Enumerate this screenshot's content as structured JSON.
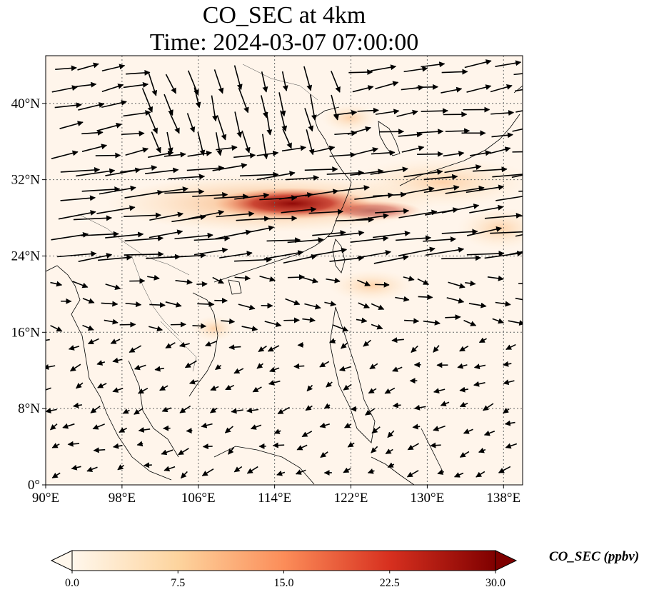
{
  "title_line1": "CO_SEC at 4km",
  "title_line2": "Time: 2024-03-07 07:00:00",
  "map": {
    "lon_range": [
      90,
      140
    ],
    "lat_range": [
      0,
      45
    ],
    "lon_ticks": [
      90,
      98,
      106,
      114,
      122,
      130,
      138
    ],
    "lon_tick_labels": [
      "90°E",
      "98°E",
      "106°E",
      "114°E",
      "122°E",
      "130°E",
      "138°E"
    ],
    "lat_ticks": [
      0,
      8,
      16,
      24,
      32,
      40
    ],
    "lat_tick_labels": [
      "0°",
      "8°N",
      "16°N",
      "24°N",
      "32°N",
      "40°N"
    ],
    "gridlines": true,
    "background_color": "#fff5eb",
    "plume_color": "#8b0000",
    "wind_vectors": "black arrows"
  },
  "colorbar": {
    "label": "CO_SEC (ppbv)",
    "min": 0.0,
    "max": 30.0,
    "ticks": [
      0.0,
      7.5,
      15.0,
      22.5,
      30.0
    ],
    "tick_labels": [
      "0.0",
      "7.5",
      "15.0",
      "22.5",
      "30.0"
    ],
    "colormap": "OrRd",
    "extend": "both"
  }
}
